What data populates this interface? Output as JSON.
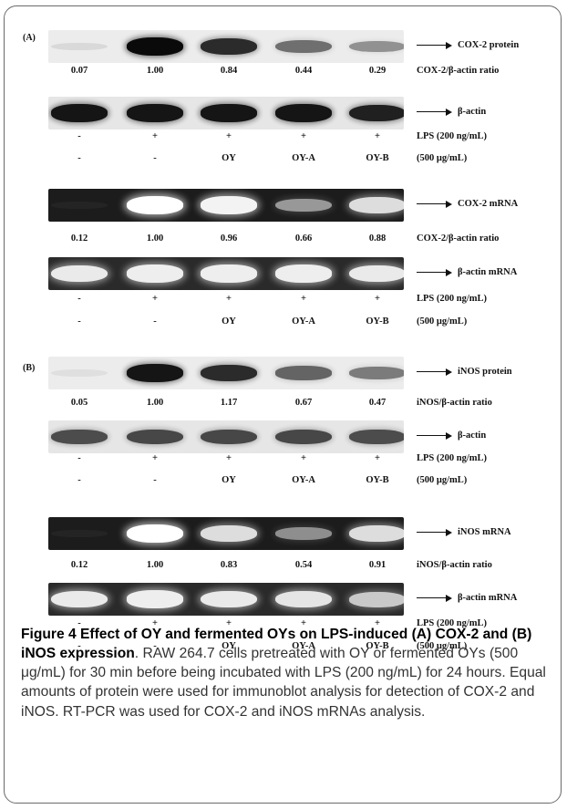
{
  "lanes_x": [
    82,
    165,
    246,
    328,
    409
  ],
  "panels": [
    {
      "label": "(A)",
      "label_y": 36,
      "blocks": [
        {
          "strip": {
            "type": "protein",
            "top": 26,
            "intensity": [
              0.08,
              1.0,
              0.85,
              0.55,
              0.4
            ]
          },
          "arrow_label": "COX-2 protein",
          "values": [
            "0.07",
            "1.00",
            "0.84",
            "0.44",
            "0.29"
          ],
          "values_y": 72,
          "ratio_label": "COX-2/β-actin ratio",
          "actin_strip": {
            "type": "protein",
            "top": 99,
            "intensity": [
              0.95,
              0.95,
              0.95,
              0.95,
              0.9
            ]
          },
          "actin_label": "β-actin",
          "lps": [
            "-",
            "+",
            "+",
            "+",
            "+"
          ],
          "lps_y": 144,
          "lps_label": "LPS (200 ng/mL)",
          "treat": [
            "-",
            "-",
            "OY",
            "OY-A",
            "OY-B"
          ],
          "treat_y": 168,
          "treat_label": "(500 μg/mL)"
        },
        {
          "strip": {
            "type": "mrna",
            "top": 200,
            "intensity": [
              0.02,
              1.0,
              0.95,
              0.55,
              0.85
            ]
          },
          "arrow_label": "COX-2 mRNA",
          "values": [
            "0.12",
            "1.00",
            "0.96",
            "0.66",
            "0.88"
          ],
          "values_y": 256,
          "ratio_label": "COX-2/β-actin ratio",
          "actin_strip": {
            "type": "mrna",
            "top": 275,
            "intensity": [
              0.9,
              0.92,
              0.92,
              0.92,
              0.9
            ]
          },
          "actin_label": "β-actin mRNA",
          "lps": [
            "-",
            "+",
            "+",
            "+",
            "+"
          ],
          "lps_y": 322,
          "lps_label": "LPS (200 ng/mL)",
          "treat": [
            "-",
            "-",
            "OY",
            "OY-A",
            "OY-B"
          ],
          "treat_y": 347,
          "treat_label": "(500 μg/mL)"
        }
      ]
    },
    {
      "label": "(B)",
      "label_y": 398,
      "blocks": [
        {
          "strip": {
            "type": "protein",
            "top": 384,
            "intensity": [
              0.05,
              0.95,
              0.85,
              0.6,
              0.5
            ]
          },
          "arrow_label": "iNOS protein",
          "values": [
            "0.05",
            "1.00",
            "1.17",
            "0.67",
            "0.47"
          ],
          "values_y": 436,
          "ratio_label": "iNOS/β-actin ratio",
          "actin_strip": {
            "type": "protein",
            "top": 454,
            "intensity": [
              0.7,
              0.72,
              0.72,
              0.72,
              0.7
            ]
          },
          "actin_label": "β-actin",
          "lps": [
            "-",
            "+",
            "+",
            "+",
            "+"
          ],
          "lps_y": 497,
          "lps_label": "LPS (200 ng/mL)",
          "treat": [
            "-",
            "-",
            "OY",
            "OY-A",
            "OY-B"
          ],
          "treat_y": 521,
          "treat_label": "(500 μg/mL)"
        },
        {
          "strip": {
            "type": "mrna",
            "top": 560,
            "intensity": [
              0.02,
              1.0,
              0.85,
              0.5,
              0.85
            ]
          },
          "arrow_label": "iNOS mRNA",
          "values": [
            "0.12",
            "1.00",
            "0.83",
            "0.54",
            "0.91"
          ],
          "values_y": 614,
          "ratio_label": "iNOS/β-actin ratio",
          "actin_strip": {
            "type": "mrna",
            "top": 632,
            "intensity": [
              0.9,
              0.92,
              0.9,
              0.88,
              0.75
            ]
          },
          "actin_label": "β-actin mRNA",
          "lps": [
            "-",
            "+",
            "+",
            "+",
            "+"
          ],
          "lps_y": 678,
          "lps_label": "LPS (200 ng/mL)",
          "treat": [
            "-",
            "-",
            "OY",
            "OY-A",
            "OY-B"
          ],
          "treat_y": 703,
          "treat_label": "(500 μg/mL)"
        }
      ]
    }
  ],
  "caption": {
    "title": "Figure 4 Effect of OY and fermented OYs on LPS-induced (A) COX-2 and (B) iNOS expression",
    "body": ". RAW 264.7 cells pretreated with OY or fermented OYs (500 μg/mL) for 30 min before being incubated with LPS (200 ng/mL) for 24 hours. Equal amounts of protein were used for immunoblot analysis for detection of COX-2 and iNOS. RT-PCR was used for COX-2 and iNOS mRNAs analysis."
  }
}
